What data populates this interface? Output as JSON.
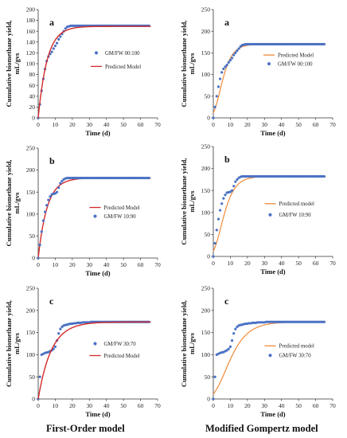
{
  "captions": {
    "left": "First-Order model",
    "right": "Modified Gompertz model"
  },
  "chart_data": [
    {
      "type": "scatter",
      "panel_letter": "a",
      "model": "first-order",
      "xlabel": "Time (d)",
      "ylabel": "Cumulative biomethane yield, mL/gvs",
      "xlim": [
        0,
        70
      ],
      "ylim": [
        0,
        200
      ],
      "xticks": [
        0,
        10,
        20,
        30,
        40,
        50,
        60,
        70
      ],
      "yticks": [
        0,
        20,
        40,
        60,
        80,
        100,
        120,
        140,
        160,
        180,
        200
      ],
      "legend_position": "middle-right",
      "line_color": "#d42a2a",
      "marker_color": "#4a72c4",
      "series": [
        {
          "name": "GM/FW 00:100",
          "kind": "scatter",
          "x": [
            0,
            1,
            2,
            3,
            4,
            5,
            6,
            7,
            8,
            9,
            10,
            11,
            12,
            13,
            14,
            15,
            16,
            17,
            18,
            19,
            20,
            21,
            22,
            23,
            24,
            25,
            26,
            27,
            28,
            29,
            30,
            31,
            32,
            33,
            34,
            35,
            36,
            37,
            38,
            39,
            40,
            41,
            42,
            43,
            44,
            45,
            46,
            47,
            48,
            49,
            50,
            51,
            52,
            53,
            54,
            55,
            56,
            57,
            58,
            59,
            60,
            61,
            62,
            63,
            64,
            65
          ],
          "y": [
            0,
            25,
            50,
            72,
            90,
            105,
            113,
            118,
            122,
            128,
            133,
            138,
            145,
            150,
            155,
            160,
            165,
            168,
            169,
            170,
            170,
            170,
            170,
            170,
            170,
            170,
            170,
            170,
            170,
            170,
            170,
            170,
            170,
            170,
            170,
            170,
            170,
            170,
            170,
            170,
            170,
            170,
            170,
            170,
            170,
            170,
            170,
            170,
            170,
            170,
            170,
            170,
            170,
            170,
            170,
            170,
            170,
            170,
            170,
            170,
            170,
            170,
            170,
            170,
            170,
            170
          ]
        },
        {
          "name": "Predicted Model",
          "kind": "line",
          "model": "first-order",
          "ymax": 169,
          "k": 0.19
        }
      ]
    },
    {
      "type": "scatter",
      "panel_letter": "a",
      "model": "gompertz",
      "xlabel": "Time (d)",
      "ylabel": "Cumulative biomethane yield, mL/gvs",
      "xlim": [
        0,
        70
      ],
      "ylim": [
        0,
        250
      ],
      "xticks": [
        0,
        10,
        20,
        30,
        40,
        50,
        60,
        70
      ],
      "yticks": [
        0,
        50,
        100,
        150,
        200,
        250
      ],
      "legend_position": "middle-right",
      "line_color": "#f08a38",
      "marker_color": "#4a72c4",
      "series": [
        {
          "name": "Predicted Model",
          "kind": "line",
          "model": "gompertz",
          "P": 170,
          "Rm": 16,
          "lambda": 0
        },
        {
          "name": "GM/FW 00:100",
          "kind": "scatter",
          "x": [
            0,
            1,
            2,
            3,
            4,
            5,
            6,
            7,
            8,
            9,
            10,
            11,
            12,
            13,
            14,
            15,
            16,
            17,
            18,
            19,
            20,
            21,
            22,
            23,
            24,
            25,
            26,
            27,
            28,
            29,
            30,
            31,
            32,
            33,
            34,
            35,
            36,
            37,
            38,
            39,
            40,
            41,
            42,
            43,
            44,
            45,
            46,
            47,
            48,
            49,
            50,
            51,
            52,
            53,
            54,
            55,
            56,
            57,
            58,
            59,
            60,
            61,
            62,
            63,
            64,
            65
          ],
          "y": [
            0,
            25,
            50,
            72,
            90,
            105,
            113,
            118,
            122,
            128,
            133,
            138,
            145,
            150,
            155,
            160,
            165,
            168,
            169,
            170,
            170,
            170,
            170,
            170,
            170,
            170,
            170,
            170,
            170,
            170,
            170,
            170,
            170,
            170,
            170,
            170,
            170,
            170,
            170,
            170,
            170,
            170,
            170,
            170,
            170,
            170,
            170,
            170,
            170,
            170,
            170,
            170,
            170,
            170,
            170,
            170,
            170,
            170,
            170,
            170,
            170,
            170,
            170,
            170,
            170,
            170
          ]
        }
      ]
    },
    {
      "type": "scatter",
      "panel_letter": "b",
      "model": "first-order",
      "xlabel": "Time (d)",
      "ylabel": "Cumulative biomethane yield, mL/gvs",
      "xlim": [
        0,
        70
      ],
      "ylim": [
        0,
        250
      ],
      "xticks": [
        0,
        10,
        20,
        30,
        40,
        50,
        60,
        70
      ],
      "yticks": [
        0,
        50,
        100,
        150,
        200,
        250
      ],
      "legend_position": "middle-right",
      "line_color": "#d42a2a",
      "marker_color": "#4a72c4",
      "series": [
        {
          "name": "Predicted Model",
          "kind": "line",
          "model": "first-order",
          "ymax": 182,
          "k": 0.19
        },
        {
          "name": "GM/FW 10:90",
          "kind": "scatter",
          "x": [
            0,
            1,
            2,
            3,
            4,
            5,
            6,
            7,
            8,
            9,
            10,
            11,
            12,
            13,
            14,
            15,
            16,
            17,
            18,
            19,
            20,
            21,
            22,
            23,
            24,
            25,
            26,
            27,
            28,
            29,
            30,
            31,
            32,
            33,
            34,
            35,
            36,
            37,
            38,
            39,
            40,
            41,
            42,
            43,
            44,
            45,
            46,
            47,
            48,
            49,
            50,
            51,
            52,
            53,
            54,
            55,
            56,
            57,
            58,
            59,
            60,
            61,
            62,
            63,
            64,
            65
          ],
          "y": [
            0,
            30,
            60,
            85,
            105,
            120,
            132,
            140,
            145,
            146,
            147,
            150,
            160,
            170,
            175,
            179,
            181,
            182,
            182,
            182,
            182,
            182,
            182,
            182,
            182,
            182,
            182,
            182,
            182,
            182,
            182,
            182,
            182,
            182,
            182,
            182,
            182,
            182,
            182,
            182,
            182,
            182,
            182,
            182,
            182,
            182,
            182,
            182,
            182,
            182,
            182,
            182,
            182,
            182,
            182,
            182,
            182,
            182,
            182,
            182,
            182,
            182,
            182,
            182,
            182,
            182
          ]
        }
      ]
    },
    {
      "type": "scatter",
      "panel_letter": "b",
      "model": "gompertz",
      "xlabel": "Time (d)",
      "ylabel": "Cumulative biomethane yield, mL/gvs",
      "xlim": [
        0,
        70
      ],
      "ylim": [
        0,
        250
      ],
      "xticks": [
        0,
        10,
        20,
        30,
        40,
        50,
        60,
        70
      ],
      "yticks": [
        0,
        50,
        100,
        150,
        200,
        250
      ],
      "legend_position": "middle-right",
      "line_color": "#f08a38",
      "marker_color": "#4a72c4",
      "series": [
        {
          "name": "Predicted model",
          "kind": "line",
          "model": "gompertz",
          "P": 182,
          "Rm": 15,
          "lambda": 0
        },
        {
          "name": "GM/FW 10:90",
          "kind": "scatter",
          "x": [
            0,
            1,
            2,
            3,
            4,
            5,
            6,
            7,
            8,
            9,
            10,
            11,
            12,
            13,
            14,
            15,
            16,
            17,
            18,
            19,
            20,
            21,
            22,
            23,
            24,
            25,
            26,
            27,
            28,
            29,
            30,
            31,
            32,
            33,
            34,
            35,
            36,
            37,
            38,
            39,
            40,
            41,
            42,
            43,
            44,
            45,
            46,
            47,
            48,
            49,
            50,
            51,
            52,
            53,
            54,
            55,
            56,
            57,
            58,
            59,
            60,
            61,
            62,
            63,
            64,
            65
          ],
          "y": [
            0,
            30,
            60,
            85,
            105,
            120,
            132,
            140,
            145,
            146,
            147,
            150,
            160,
            170,
            175,
            179,
            181,
            182,
            182,
            182,
            182,
            182,
            182,
            182,
            182,
            182,
            182,
            182,
            182,
            182,
            182,
            182,
            182,
            182,
            182,
            182,
            182,
            182,
            182,
            182,
            182,
            182,
            182,
            182,
            182,
            182,
            182,
            182,
            182,
            182,
            182,
            182,
            182,
            182,
            182,
            182,
            182,
            182,
            182,
            182,
            182,
            182,
            182,
            182,
            182,
            182
          ]
        }
      ]
    },
    {
      "type": "scatter",
      "panel_letter": "c",
      "model": "first-order",
      "xlabel": "Time (d)",
      "ylabel": "Cumulative biomethane yield, mL/gvs",
      "xlim": [
        0,
        70
      ],
      "ylim": [
        0,
        250
      ],
      "xticks": [
        0,
        10,
        20,
        30,
        40,
        50,
        60,
        70
      ],
      "yticks": [
        0,
        50,
        100,
        150,
        200,
        250
      ],
      "legend_position": "middle-right",
      "line_color": "#d42a2a",
      "marker_color": "#4a72c4",
      "series": [
        {
          "name": "GM/FW 30:70",
          "kind": "scatter",
          "x": [
            0,
            1,
            2,
            3,
            4,
            5,
            6,
            7,
            8,
            9,
            10,
            11,
            12,
            13,
            14,
            15,
            16,
            17,
            18,
            19,
            20,
            21,
            22,
            23,
            24,
            25,
            26,
            27,
            28,
            29,
            30,
            31,
            32,
            33,
            34,
            35,
            36,
            37,
            38,
            39,
            40,
            41,
            42,
            43,
            44,
            45,
            46,
            47,
            48,
            49,
            50,
            51,
            52,
            53,
            54,
            55,
            56,
            57,
            58,
            59,
            60,
            61,
            62,
            63,
            64,
            65
          ],
          "y": [
            0,
            50,
            100,
            102,
            104,
            105,
            106,
            108,
            110,
            113,
            118,
            132,
            148,
            158,
            163,
            166,
            167,
            168,
            169,
            170,
            170,
            171,
            171,
            172,
            172,
            172,
            173,
            173,
            173,
            173,
            173,
            174,
            174,
            174,
            174,
            174,
            174,
            174,
            174,
            174,
            174,
            174,
            174,
            174,
            174,
            174,
            174,
            174,
            174,
            174,
            174,
            174,
            174,
            174,
            174,
            174,
            174,
            174,
            174,
            174,
            174,
            174,
            174,
            174,
            174,
            174
          ]
        },
        {
          "name": "Predicted Model",
          "kind": "line",
          "model": "first-order",
          "ymax": 174,
          "k": 0.13
        }
      ]
    },
    {
      "type": "scatter",
      "panel_letter": "c",
      "model": "gompertz",
      "xlabel": "Time (d)",
      "ylabel": "Cumulative biomethane yield, mL/gvs",
      "xlim": [
        0,
        70
      ],
      "ylim": [
        0,
        250
      ],
      "xticks": [
        0,
        10,
        20,
        30,
        40,
        50,
        60,
        70
      ],
      "yticks": [
        0,
        50,
        100,
        150,
        200,
        250
      ],
      "legend_position": "middle-right",
      "line_color": "#f08a38",
      "marker_color": "#4a72c4",
      "series": [
        {
          "name": "Predicted model",
          "kind": "line",
          "model": "gompertz",
          "P": 174,
          "Rm": 9,
          "lambda": 0
        },
        {
          "name": "GM/FW 30:70",
          "kind": "scatter",
          "x": [
            0,
            1,
            2,
            3,
            4,
            5,
            6,
            7,
            8,
            9,
            10,
            11,
            12,
            13,
            14,
            15,
            16,
            17,
            18,
            19,
            20,
            21,
            22,
            23,
            24,
            25,
            26,
            27,
            28,
            29,
            30,
            31,
            32,
            33,
            34,
            35,
            36,
            37,
            38,
            39,
            40,
            41,
            42,
            43,
            44,
            45,
            46,
            47,
            48,
            49,
            50,
            51,
            52,
            53,
            54,
            55,
            56,
            57,
            58,
            59,
            60,
            61,
            62,
            63,
            64,
            65
          ],
          "y": [
            0,
            50,
            100,
            102,
            104,
            105,
            106,
            108,
            110,
            113,
            118,
            132,
            148,
            158,
            163,
            166,
            167,
            168,
            169,
            170,
            170,
            171,
            171,
            172,
            172,
            172,
            173,
            173,
            173,
            173,
            173,
            174,
            174,
            174,
            174,
            174,
            174,
            174,
            174,
            174,
            174,
            174,
            174,
            174,
            174,
            174,
            174,
            174,
            174,
            174,
            174,
            174,
            174,
            174,
            174,
            174,
            174,
            174,
            174,
            174,
            174,
            174,
            174,
            174,
            174,
            174
          ]
        }
      ]
    }
  ]
}
